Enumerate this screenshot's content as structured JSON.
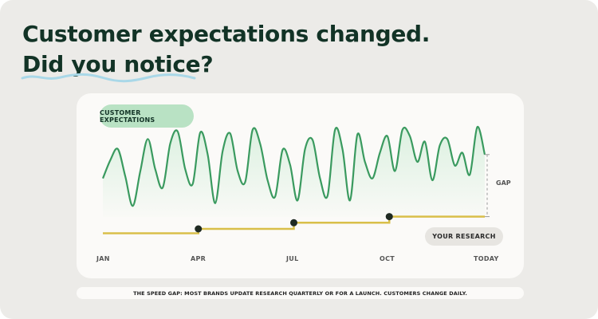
{
  "headline": {
    "line1": "Customer expectations changed.",
    "line2": "Did you notice?"
  },
  "colors": {
    "ink": "#123326",
    "expectations_line": "#3a9a5f",
    "expectations_fill": "#d6efdc",
    "research_line": "#d9bf4a",
    "marker": "#1f2a22",
    "pill_green": "#b9e2c4",
    "underline": "#a9d8e8"
  },
  "chart_data": {
    "type": "line",
    "x_ticks": [
      "JAN",
      "APR",
      "JUL",
      "OCT",
      "TODAY"
    ],
    "series": [
      {
        "name": "CUSTOMER EXPECTATIONS",
        "values": [
          0.42,
          0.62,
          0.74,
          0.44,
          0.12,
          0.5,
          0.85,
          0.52,
          0.32,
          0.8,
          0.93,
          0.52,
          0.36,
          0.92,
          0.68,
          0.15,
          0.72,
          0.91,
          0.5,
          0.38,
          0.95,
          0.8,
          0.4,
          0.22,
          0.73,
          0.57,
          0.18,
          0.74,
          0.84,
          0.42,
          0.23,
          0.95,
          0.74,
          0.18,
          0.9,
          0.6,
          0.42,
          0.7,
          0.88,
          0.5,
          0.95,
          0.88,
          0.6,
          0.82,
          0.4,
          0.78,
          0.85,
          0.56,
          0.7,
          0.46,
          0.98,
          0.68
        ]
      },
      {
        "name": "YOUR RESEARCH",
        "type": "step",
        "points": [
          {
            "x": 0.0,
            "y": 0.05
          },
          {
            "x": 0.25,
            "y": 0.1
          },
          {
            "x": 0.5,
            "y": 0.17
          },
          {
            "x": 0.75,
            "y": 0.24
          },
          {
            "x": 1.0,
            "y": 0.24
          }
        ],
        "update_markers": [
          0.25,
          0.5,
          0.75
        ]
      }
    ],
    "annotations": [
      "GAP"
    ],
    "grid": false
  },
  "labels": {
    "expectations_pill": "CUSTOMER EXPECTATIONS",
    "research_pill": "YOUR RESEARCH",
    "gap": "GAP",
    "x_ticks": [
      "JAN",
      "APR",
      "JUL",
      "OCT",
      "TODAY"
    ]
  },
  "footer": "THE SPEED GAP: MOST BRANDS UPDATE RESEARCH QUARTERLY OR FOR A LAUNCH. CUSTOMERS CHANGE DAILY."
}
